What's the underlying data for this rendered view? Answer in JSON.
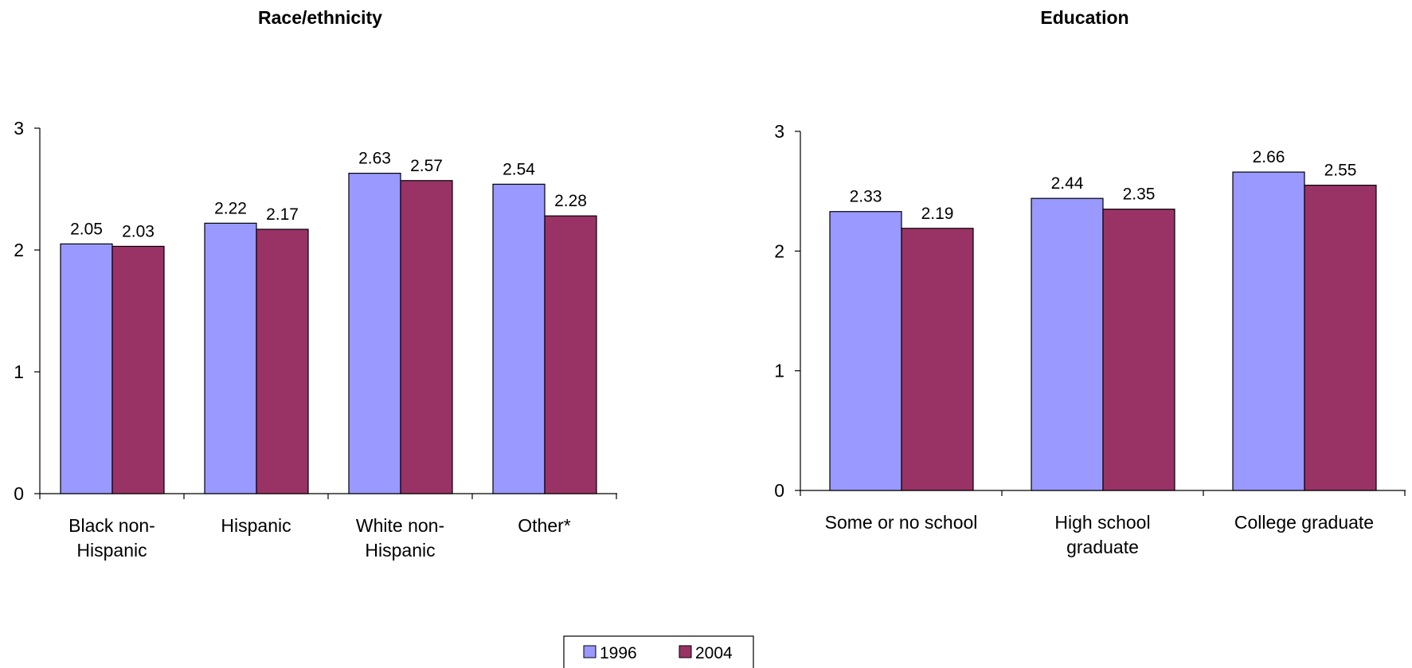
{
  "chart_data": [
    {
      "type": "bar",
      "title": "Race/ethnicity",
      "categories": [
        [
          "Black non-",
          "Hispanic"
        ],
        [
          "Hispanic"
        ],
        [
          "White non-",
          "Hispanic"
        ],
        [
          "Other*"
        ]
      ],
      "series": [
        {
          "name": "1996",
          "values": [
            2.05,
            2.22,
            2.63,
            2.54
          ]
        },
        {
          "name": "2004",
          "values": [
            2.03,
            2.17,
            2.57,
            2.28
          ]
        }
      ],
      "value_labels": [
        [
          "2.05",
          "2.22",
          "2.63",
          "2.54"
        ],
        [
          "2.03",
          "2.17",
          "2.57",
          "2.28"
        ]
      ],
      "yticks": [
        "0",
        "1",
        "2",
        "3"
      ],
      "ylim": [
        0,
        3
      ],
      "grid": false
    },
    {
      "type": "bar",
      "title": "Education",
      "categories": [
        [
          "Some or no school"
        ],
        [
          "High school",
          "graduate"
        ],
        [
          "College graduate"
        ]
      ],
      "series": [
        {
          "name": "1996",
          "values": [
            2.33,
            2.44,
            2.66
          ]
        },
        {
          "name": "2004",
          "values": [
            2.19,
            2.35,
            2.55
          ]
        }
      ],
      "value_labels": [
        [
          "2.33",
          "2.44",
          "2.66"
        ],
        [
          "2.19",
          "2.35",
          "2.55"
        ]
      ],
      "yticks": [
        "0",
        "1",
        "2",
        "3"
      ],
      "ylim": [
        0,
        3
      ],
      "grid": false
    }
  ],
  "legend": {
    "position": "bottom-center",
    "items": [
      {
        "label": "1996",
        "color": "#9999ff"
      },
      {
        "label": "2004",
        "color": "#993366"
      }
    ]
  }
}
